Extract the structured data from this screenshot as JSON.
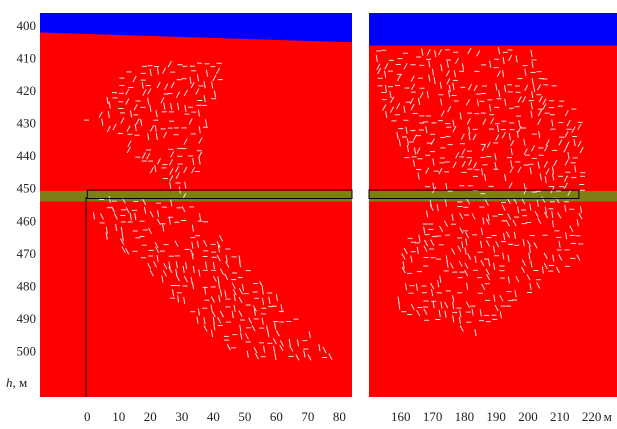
{
  "chart_data": {
    "type": "heatmap",
    "title": "",
    "y_axis": {
      "label_var": "h",
      "label_unit": ", м",
      "ticks": [
        400,
        410,
        420,
        430,
        440,
        450,
        460,
        470,
        480,
        490,
        500
      ],
      "range": [
        396,
        514
      ],
      "inverted": true
    },
    "x_unit": "м",
    "panels": [
      {
        "name": "left",
        "x_ticks": [
          "0",
          "10",
          "20",
          "30",
          "40",
          "50",
          "60",
          "70",
          "80"
        ],
        "x_range": [
          -15,
          84
        ],
        "water_surface": [
          [
            -15,
            402
          ],
          [
            84,
            405
          ]
        ],
        "seam_depth": [
          451,
          453
        ],
        "selected_zone_x": [
          0,
          84
        ],
        "fracture_region": [
          [
            [
              -1,
              429
            ],
            [
              15,
              411
            ],
            [
              44,
              411
            ],
            [
              33,
              453
            ],
            [
              30,
              453
            ],
            [
              3,
              429
            ]
          ],
          [
            [
              -1,
              453
            ],
            [
              32,
              453
            ],
            [
              72,
              496
            ],
            [
              78,
              502
            ],
            [
              47,
              502
            ],
            [
              3,
              462
            ]
          ]
        ],
        "colors": {
          "water": "#0000ff",
          "rock": "#ff0000",
          "seam": "#7f7f17",
          "fracture": "#e6e6e6",
          "frame": "#000000"
        }
      },
      {
        "name": "right",
        "x_ticks": [
          "160",
          "170",
          "180",
          "190",
          "200",
          "210",
          "220"
        ],
        "x_unit_label": "м",
        "x_range": [
          150,
          228
        ],
        "water_surface": [
          [
            150,
            406
          ],
          [
            228,
            406
          ]
        ],
        "seam_depth": [
          451,
          453
        ],
        "selected_zone_x": [
          150,
          216
        ],
        "fracture_region": [
          [
            [
              152,
              407
            ],
            [
              200,
              407
            ],
            [
              218,
              430
            ],
            [
              218,
              453
            ],
            [
              170,
              453
            ],
            [
              155,
              430
            ]
          ],
          [
            [
              170,
              453
            ],
            [
              218,
              453
            ],
            [
              218,
              470
            ],
            [
              183,
              495
            ],
            [
              158,
              488
            ],
            [
              160,
              470
            ]
          ]
        ],
        "colors": {
          "water": "#0000ff",
          "rock": "#ff0000",
          "seam": "#7f7f17",
          "fracture": "#e6e6e6",
          "frame": "#000000"
        }
      }
    ]
  }
}
